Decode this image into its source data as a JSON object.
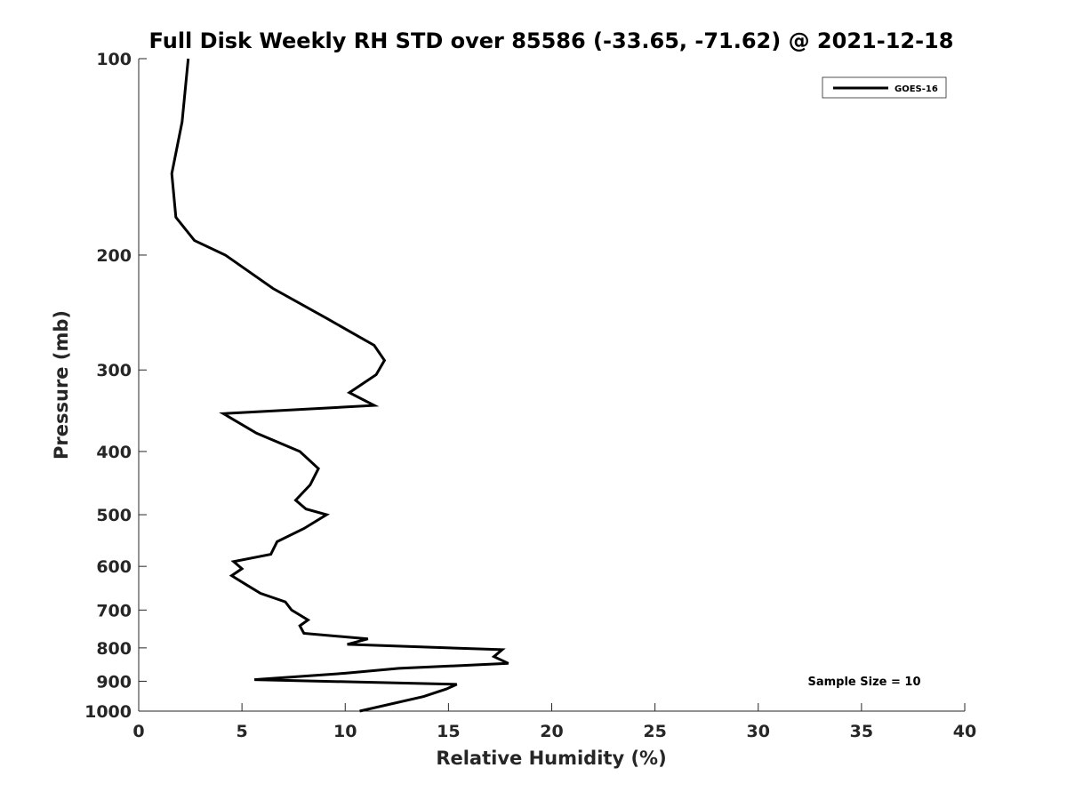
{
  "chart_data": {
    "type": "line",
    "title": "Full Disk Weekly RH STD over 85586 (-33.65, -71.62) @ 2021-12-18",
    "xlabel": "Relative Humidity (%)",
    "ylabel": "Pressure (mb)",
    "xlim": [
      0,
      40
    ],
    "ylim": [
      100,
      1000
    ],
    "yscale": "log",
    "y_reversed": true,
    "x_ticks": [
      0,
      5,
      10,
      15,
      20,
      25,
      30,
      35,
      40
    ],
    "y_ticks": [
      100,
      200,
      300,
      400,
      500,
      600,
      700,
      800,
      900,
      1000
    ],
    "grid": false,
    "legend_position": "top-right",
    "annotation": "Sample Size = 10",
    "series": [
      {
        "name": "GOES-16",
        "color": "#000000",
        "points": [
          [
            2.4,
            100
          ],
          [
            2.1,
            125
          ],
          [
            1.6,
            150
          ],
          [
            1.8,
            175
          ],
          [
            2.7,
            190
          ],
          [
            4.2,
            200
          ],
          [
            6.5,
            225
          ],
          [
            9.1,
            250
          ],
          [
            11.4,
            275
          ],
          [
            11.9,
            290
          ],
          [
            11.5,
            305
          ],
          [
            10.2,
            325
          ],
          [
            11.4,
            340
          ],
          [
            4.1,
            350
          ],
          [
            5.7,
            375
          ],
          [
            7.8,
            400
          ],
          [
            8.7,
            425
          ],
          [
            8.3,
            450
          ],
          [
            7.6,
            475
          ],
          [
            8.1,
            490
          ],
          [
            9.1,
            500
          ],
          [
            8.0,
            525
          ],
          [
            6.7,
            550
          ],
          [
            6.4,
            575
          ],
          [
            4.6,
            590
          ],
          [
            5.0,
            605
          ],
          [
            4.5,
            620
          ],
          [
            5.2,
            640
          ],
          [
            5.9,
            660
          ],
          [
            7.1,
            680
          ],
          [
            7.4,
            700
          ],
          [
            8.2,
            725
          ],
          [
            7.8,
            740
          ],
          [
            8.0,
            760
          ],
          [
            11.1,
            775
          ],
          [
            10.1,
            790
          ],
          [
            17.6,
            805
          ],
          [
            17.2,
            825
          ],
          [
            17.9,
            845
          ],
          [
            12.6,
            860
          ],
          [
            10.0,
            875
          ],
          [
            5.6,
            895
          ],
          [
            15.4,
            910
          ],
          [
            14.9,
            925
          ],
          [
            13.8,
            950
          ],
          [
            10.7,
            1000
          ]
        ]
      }
    ]
  }
}
